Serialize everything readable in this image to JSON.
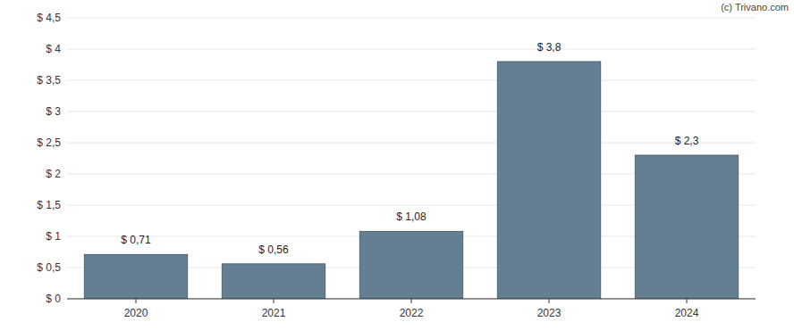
{
  "chart_data": {
    "type": "bar",
    "categories": [
      "2020",
      "2021",
      "2022",
      "2023",
      "2024"
    ],
    "values": [
      0.71,
      0.56,
      1.08,
      3.8,
      2.3
    ],
    "value_labels": [
      "$ 0,71",
      "$ 0,56",
      "$ 1,08",
      "$ 3,8",
      "$ 2,3"
    ],
    "data_labels": true,
    "color": "#647f92",
    "ylim": [
      0,
      4.5
    ],
    "yticks": [
      {
        "value": 0,
        "label": "$ 0"
      },
      {
        "value": 0.5,
        "label": "$ 0,5"
      },
      {
        "value": 1,
        "label": "$ 1"
      },
      {
        "value": 1.5,
        "label": "$ 1,5"
      },
      {
        "value": 2,
        "label": "$ 2"
      },
      {
        "value": 2.5,
        "label": "$ 2,5"
      },
      {
        "value": 3,
        "label": "$ 3"
      },
      {
        "value": 3.5,
        "label": "$ 3,5"
      },
      {
        "value": 4,
        "label": "$ 4"
      },
      {
        "value": 4.5,
        "label": "$ 4,5"
      }
    ],
    "grid": true,
    "annotations": [
      "(c) Trivano.com"
    ]
  }
}
